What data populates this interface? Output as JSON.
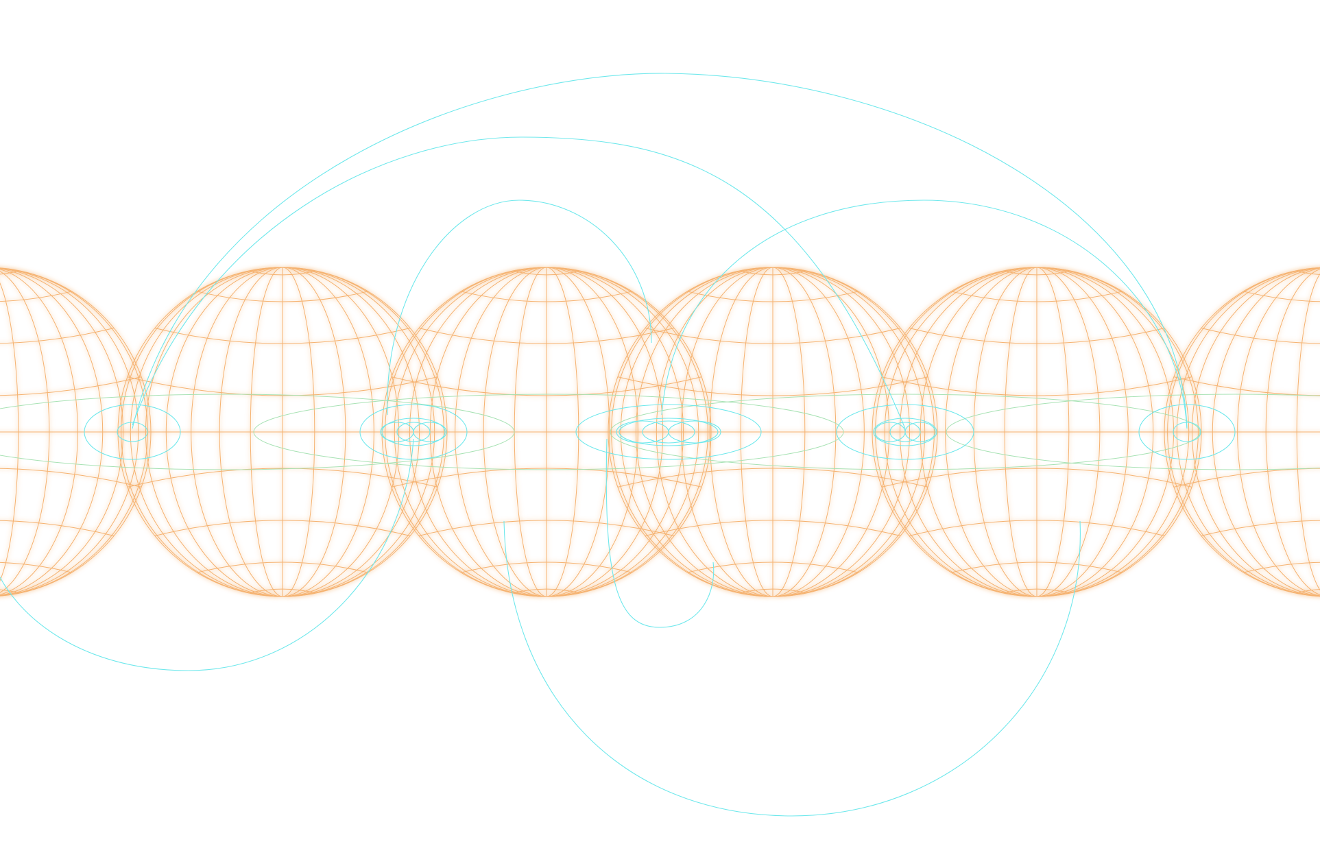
{
  "canvas": {
    "background": "#ffffff"
  },
  "colors": {
    "globe_stroke": "#f5b270",
    "globe_glow": "#fcd9b0",
    "ring_stroke": "#6fe8ec",
    "latitude_band_stroke": "#a8e2b4"
  },
  "globes": {
    "count": 6,
    "meridian_count": 16,
    "parallel_count": 8
  },
  "rings": {
    "count": 5
  },
  "arcs": {
    "count": 7
  }
}
